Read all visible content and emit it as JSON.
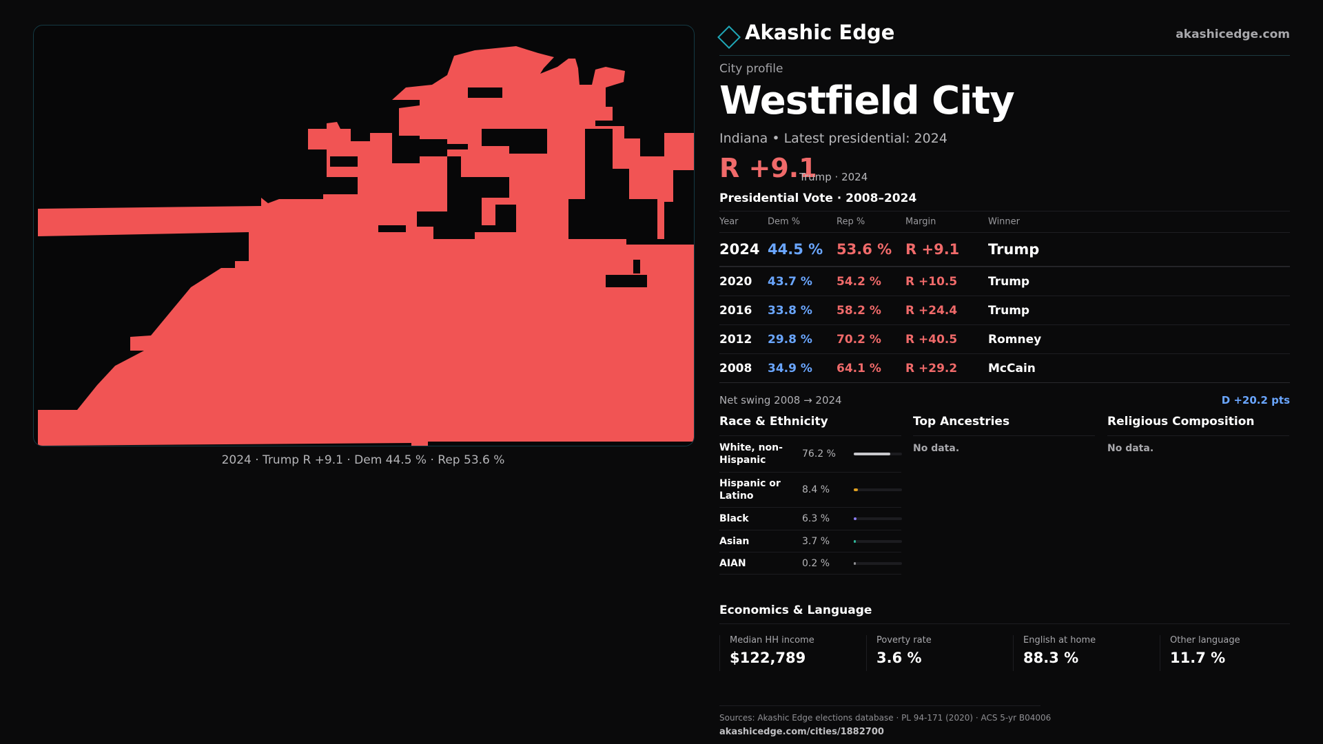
{
  "brand": {
    "name": "Akashic Edge",
    "site": "akashicedge.com"
  },
  "profile": {
    "eyebrow": "City profile",
    "city": "Westfield City",
    "subtitle": "Indiana • Latest presidential: 2024",
    "margin": "R +9.1",
    "margin_note": "Trump · 2024"
  },
  "map": {
    "fill_color": "#f15454",
    "caption": "2024 · Trump R +9.1 · Dem 44.5 % · Rep 53.6 %"
  },
  "vote": {
    "title": "Presidential Vote · 2008–2024",
    "headers": {
      "year": "Year",
      "dem": "Dem %",
      "rep": "Rep %",
      "margin": "Margin",
      "winner": "Winner"
    },
    "rows": [
      {
        "year": "2024",
        "dem": "44.5 %",
        "rep": "53.6 %",
        "margin": "R +9.1",
        "winner": "Trump"
      },
      {
        "year": "2020",
        "dem": "43.7 %",
        "rep": "54.2 %",
        "margin": "R +10.5",
        "winner": "Trump"
      },
      {
        "year": "2016",
        "dem": "33.8 %",
        "rep": "58.2 %",
        "margin": "R +24.4",
        "winner": "Trump"
      },
      {
        "year": "2012",
        "dem": "29.8 %",
        "rep": "70.2 %",
        "margin": "R +40.5",
        "winner": "Romney"
      },
      {
        "year": "2008",
        "dem": "34.9 %",
        "rep": "64.1 %",
        "margin": "R +29.2",
        "winner": "McCain"
      }
    ],
    "swing_label": "Net swing 2008 → 2024",
    "swing_value": "D +20.2 pts"
  },
  "race": {
    "title": "Race & Ethnicity",
    "rows": [
      {
        "label": "White, non-Hispanic",
        "pct": "76.2 %",
        "share": 0.762,
        "color": "#c8c8cc"
      },
      {
        "label": "Hispanic or Latino",
        "pct": "8.4 %",
        "share": 0.084,
        "color": "#e0a020"
      },
      {
        "label": "Black",
        "pct": "6.3 %",
        "share": 0.063,
        "color": "#8b7cf0"
      },
      {
        "label": "Asian",
        "pct": "3.7 %",
        "share": 0.037,
        "color": "#2fb89a"
      },
      {
        "label": "AIAN",
        "pct": "0.2 %",
        "share": 0.002,
        "color": "#8f8f93"
      }
    ]
  },
  "ancestries": {
    "title": "Top Ancestries",
    "empty": "No data."
  },
  "religion": {
    "title": "Religious Composition",
    "empty": "No data."
  },
  "economics": {
    "title": "Economics & Language",
    "cells": [
      {
        "label": "Median HH income",
        "value": "$122,789"
      },
      {
        "label": "Poverty rate",
        "value": "3.6 %"
      },
      {
        "label": "English at home",
        "value": "88.3 %"
      },
      {
        "label": "Other language",
        "value": "11.7 %"
      }
    ]
  },
  "sources": {
    "line1": "Sources: Akashic Edge elections database · PL 94-171 (2020) · ACS 5-yr B04006",
    "line2": "akashicedge.com/cities/1882700"
  }
}
